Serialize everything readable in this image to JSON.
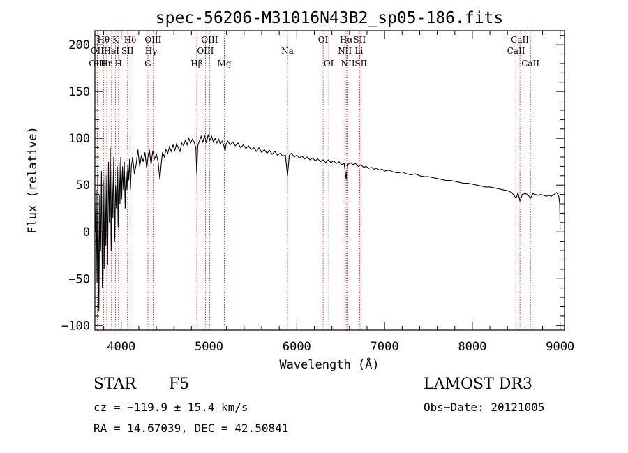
{
  "chart_data": {
    "type": "line",
    "title": "spec-56206-M31016N43B2_sp05-186.fits",
    "xlabel": "Wavelength (Å)",
    "ylabel": "Flux (relative)",
    "xlim": [
      3700,
      9050
    ],
    "ylim": [
      -105,
      215
    ],
    "xticks": [
      4000,
      5000,
      6000,
      7000,
      8000,
      9000
    ],
    "yticks": [
      -100,
      -50,
      0,
      50,
      100,
      150,
      200
    ],
    "xtick_labels": [
      "4000",
      "5000",
      "6000",
      "7000",
      "8000",
      "9000"
    ],
    "ytick_labels": [
      "−100",
      "−50",
      "0",
      "50",
      "100",
      "150",
      "200"
    ],
    "lines": [
      {
        "label": "Hθ",
        "x": 3798,
        "row": 0
      },
      {
        "label": "OII",
        "x": 3727,
        "row": 1
      },
      {
        "label": "OIII",
        "x": 3727,
        "row": 2
      },
      {
        "label": "Hη",
        "x": 3835,
        "row": 2
      },
      {
        "label": "K",
        "x": 3934,
        "row": 0
      },
      {
        "label": "HeI",
        "x": 3889,
        "row": 1
      },
      {
        "label": "H",
        "x": 3969,
        "row": 2
      },
      {
        "label": "SII",
        "x": 4072,
        "row": 1
      },
      {
        "label": "Hδ",
        "x": 4102,
        "row": 0
      },
      {
        "label": "OIII",
        "x": 4363,
        "row": 0
      },
      {
        "label": "Hγ",
        "x": 4340,
        "row": 1
      },
      {
        "label": "G",
        "x": 4304,
        "row": 2
      },
      {
        "label": "OIII",
        "x": 5007,
        "row": 0
      },
      {
        "label": "OIII",
        "x": 4959,
        "row": 1
      },
      {
        "label": "Hβ",
        "x": 4861,
        "row": 2
      },
      {
        "label": "Mg",
        "x": 5175,
        "row": 2
      },
      {
        "label": "Na",
        "x": 5894,
        "row": 1
      },
      {
        "label": "OI",
        "x": 6300,
        "row": 0
      },
      {
        "label": "OI",
        "x": 6364,
        "row": 2
      },
      {
        "label": "Hα",
        "x": 6563,
        "row": 0
      },
      {
        "label": "SII",
        "x": 6716,
        "row": 0
      },
      {
        "label": "NII",
        "x": 6548,
        "row": 1
      },
      {
        "label": "Li",
        "x": 6708,
        "row": 1
      },
      {
        "label": "NII",
        "x": 6583,
        "row": 2
      },
      {
        "label": "SII",
        "x": 6731,
        "row": 2
      },
      {
        "label": "CaII",
        "x": 8542,
        "row": 0
      },
      {
        "label": "CaII",
        "x": 8498,
        "row": 1
      },
      {
        "label": "CaII",
        "x": 8662,
        "row": 2
      }
    ],
    "spectrum": [
      [
        3705,
        0
      ],
      [
        3715,
        45
      ],
      [
        3725,
        -55
      ],
      [
        3735,
        60
      ],
      [
        3745,
        -85
      ],
      [
        3755,
        40
      ],
      [
        3765,
        -20
      ],
      [
        3775,
        65
      ],
      [
        3785,
        -60
      ],
      [
        3795,
        55
      ],
      [
        3805,
        -40
      ],
      [
        3815,
        70
      ],
      [
        3825,
        -15
      ],
      [
        3835,
        60
      ],
      [
        3845,
        -35
      ],
      [
        3855,
        75
      ],
      [
        3865,
        10
      ],
      [
        3875,
        90
      ],
      [
        3885,
        -20
      ],
      [
        3895,
        65
      ],
      [
        3905,
        15
      ],
      [
        3915,
        80
      ],
      [
        3925,
        -10
      ],
      [
        3935,
        50
      ],
      [
        3945,
        25
      ],
      [
        3955,
        70
      ],
      [
        3965,
        5
      ],
      [
        3975,
        75
      ],
      [
        3985,
        30
      ],
      [
        3995,
        80
      ],
      [
        4005,
        35
      ],
      [
        4015,
        70
      ],
      [
        4025,
        45
      ],
      [
        4035,
        75
      ],
      [
        4045,
        25
      ],
      [
        4055,
        65
      ],
      [
        4065,
        45
      ],
      [
        4075,
        72
      ],
      [
        4085,
        55
      ],
      [
        4095,
        78
      ],
      [
        4105,
        45
      ],
      [
        4115,
        70
      ],
      [
        4130,
        80
      ],
      [
        4150,
        62
      ],
      [
        4170,
        72
      ],
      [
        4190,
        88
      ],
      [
        4210,
        70
      ],
      [
        4230,
        82
      ],
      [
        4250,
        75
      ],
      [
        4270,
        85
      ],
      [
        4290,
        68
      ],
      [
        4305,
        80
      ],
      [
        4320,
        88
      ],
      [
        4340,
        72
      ],
      [
        4360,
        87
      ],
      [
        4380,
        78
      ],
      [
        4400,
        83
      ],
      [
        4420,
        75
      ],
      [
        4440,
        56
      ],
      [
        4455,
        72
      ],
      [
        4470,
        85
      ],
      [
        4490,
        80
      ],
      [
        4510,
        88
      ],
      [
        4530,
        84
      ],
      [
        4550,
        91
      ],
      [
        4570,
        86
      ],
      [
        4590,
        93
      ],
      [
        4610,
        87
      ],
      [
        4630,
        94
      ],
      [
        4650,
        90
      ],
      [
        4670,
        86
      ],
      [
        4690,
        95
      ],
      [
        4710,
        92
      ],
      [
        4730,
        98
      ],
      [
        4750,
        93
      ],
      [
        4770,
        100
      ],
      [
        4790,
        95
      ],
      [
        4810,
        99
      ],
      [
        4830,
        96
      ],
      [
        4850,
        90
      ],
      [
        4861,
        62
      ],
      [
        4872,
        92
      ],
      [
        4890,
        97
      ],
      [
        4910,
        102
      ],
      [
        4930,
        96
      ],
      [
        4950,
        103
      ],
      [
        4970,
        95
      ],
      [
        4990,
        104
      ],
      [
        5010,
        98
      ],
      [
        5030,
        102
      ],
      [
        5050,
        96
      ],
      [
        5070,
        100
      ],
      [
        5090,
        95
      ],
      [
        5110,
        99
      ],
      [
        5130,
        94
      ],
      [
        5150,
        97
      ],
      [
        5170,
        92
      ],
      [
        5183,
        86
      ],
      [
        5195,
        94
      ],
      [
        5215,
        97
      ],
      [
        5240,
        93
      ],
      [
        5270,
        96
      ],
      [
        5300,
        92
      ],
      [
        5330,
        95
      ],
      [
        5360,
        90
      ],
      [
        5390,
        93
      ],
      [
        5420,
        89
      ],
      [
        5450,
        92
      ],
      [
        5480,
        88
      ],
      [
        5510,
        90
      ],
      [
        5540,
        86
      ],
      [
        5570,
        90
      ],
      [
        5600,
        85
      ],
      [
        5630,
        88
      ],
      [
        5660,
        84
      ],
      [
        5690,
        87
      ],
      [
        5720,
        83
      ],
      [
        5750,
        86
      ],
      [
        5780,
        82
      ],
      [
        5810,
        84
      ],
      [
        5840,
        81
      ],
      [
        5870,
        82
      ],
      [
        5894,
        60
      ],
      [
        5915,
        82
      ],
      [
        5940,
        84
      ],
      [
        5970,
        80
      ],
      [
        6000,
        82
      ],
      [
        6030,
        79
      ],
      [
        6060,
        81
      ],
      [
        6090,
        78
      ],
      [
        6120,
        80
      ],
      [
        6150,
        77
      ],
      [
        6180,
        79
      ],
      [
        6210,
        76
      ],
      [
        6240,
        78
      ],
      [
        6270,
        75
      ],
      [
        6300,
        77
      ],
      [
        6330,
        74
      ],
      [
        6360,
        77
      ],
      [
        6390,
        74
      ],
      [
        6420,
        76
      ],
      [
        6450,
        73
      ],
      [
        6480,
        75
      ],
      [
        6510,
        72
      ],
      [
        6540,
        73
      ],
      [
        6563,
        56
      ],
      [
        6580,
        72
      ],
      [
        6610,
        74
      ],
      [
        6640,
        72
      ],
      [
        6670,
        73
      ],
      [
        6700,
        70
      ],
      [
        6730,
        72
      ],
      [
        6760,
        69
      ],
      [
        6790,
        70
      ],
      [
        6820,
        68
      ],
      [
        6850,
        69
      ],
      [
        6880,
        67
      ],
      [
        6910,
        68
      ],
      [
        6940,
        66
      ],
      [
        6970,
        67
      ],
      [
        7000,
        65
      ],
      [
        7050,
        66
      ],
      [
        7100,
        64
      ],
      [
        7150,
        63
      ],
      [
        7200,
        64
      ],
      [
        7250,
        62
      ],
      [
        7300,
        61
      ],
      [
        7350,
        62
      ],
      [
        7400,
        60
      ],
      [
        7450,
        59
      ],
      [
        7500,
        59
      ],
      [
        7550,
        58
      ],
      [
        7600,
        57
      ],
      [
        7650,
        56
      ],
      [
        7700,
        55
      ],
      [
        7750,
        55
      ],
      [
        7800,
        54
      ],
      [
        7850,
        53
      ],
      [
        7900,
        52
      ],
      [
        7950,
        52
      ],
      [
        8000,
        51
      ],
      [
        8050,
        50
      ],
      [
        8100,
        49
      ],
      [
        8150,
        48
      ],
      [
        8200,
        48
      ],
      [
        8250,
        47
      ],
      [
        8300,
        46
      ],
      [
        8350,
        45
      ],
      [
        8400,
        44
      ],
      [
        8450,
        42
      ],
      [
        8498,
        36
      ],
      [
        8520,
        42
      ],
      [
        8542,
        33
      ],
      [
        8570,
        40
      ],
      [
        8600,
        41
      ],
      [
        8630,
        40
      ],
      [
        8662,
        36
      ],
      [
        8690,
        41
      ],
      [
        8720,
        40
      ],
      [
        8750,
        39
      ],
      [
        8780,
        40
      ],
      [
        8810,
        39
      ],
      [
        8840,
        38
      ],
      [
        8870,
        39
      ],
      [
        8900,
        38
      ],
      [
        8930,
        40
      ],
      [
        8960,
        42
      ],
      [
        8985,
        38
      ],
      [
        8995,
        30
      ],
      [
        9000,
        2
      ]
    ]
  },
  "info": {
    "object_class": "STAR",
    "subclass": "F5",
    "survey": "LAMOST DR3",
    "cz": "cz = −119.9 ± 15.4 km/s",
    "obs_date": "Obs−Date: 20121005",
    "coords": "RA =  14.67039, DEC =  42.50841"
  },
  "colors": {
    "line_marker": "#cc0000",
    "spectrum": "#000000",
    "axes": "#000000"
  }
}
